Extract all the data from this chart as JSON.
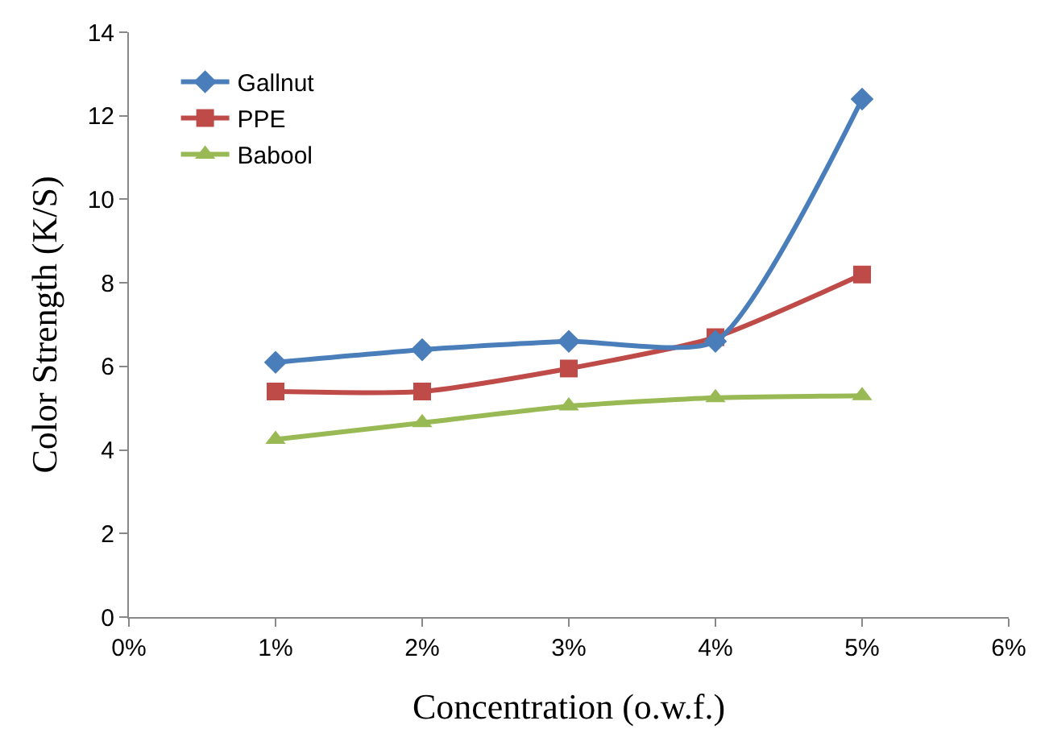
{
  "chart_data": {
    "type": "line",
    "xlabel": "Concentration (o.w.f.)",
    "ylabel": "Color Strength (K/S)",
    "x": [
      1,
      2,
      3,
      4,
      5
    ],
    "series": [
      {
        "name": "Gallnut",
        "color": "#4a7ebb",
        "marker": "diamond",
        "values": [
          6.1,
          6.4,
          6.6,
          6.6,
          12.4
        ]
      },
      {
        "name": "PPE",
        "color": "#be4b48",
        "marker": "square",
        "values": [
          5.4,
          5.4,
          5.95,
          6.7,
          8.2
        ]
      },
      {
        "name": "Babool",
        "color": "#98b954",
        "marker": "triangle",
        "values": [
          4.25,
          4.65,
          5.05,
          5.25,
          5.3
        ]
      }
    ],
    "xlim": [
      0,
      6
    ],
    "xticks": [
      {
        "value": 0,
        "label": "0%"
      },
      {
        "value": 1,
        "label": "1%"
      },
      {
        "value": 2,
        "label": "2%"
      },
      {
        "value": 3,
        "label": "3%"
      },
      {
        "value": 4,
        "label": "4%"
      },
      {
        "value": 5,
        "label": "5%"
      },
      {
        "value": 6,
        "label": "6%"
      }
    ],
    "ylim": [
      0,
      14
    ],
    "yticks": [
      0,
      2,
      4,
      6,
      8,
      10,
      12,
      14
    ],
    "grid": false,
    "legend": "top left",
    "line_style": "solid"
  }
}
